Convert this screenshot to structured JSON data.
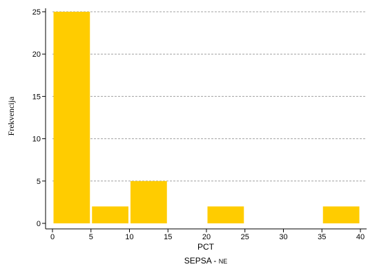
{
  "chart_data": {
    "type": "bar",
    "bins": [
      {
        "x0": 0,
        "x1": 5,
        "value": 25
      },
      {
        "x0": 5,
        "x1": 10,
        "value": 2
      },
      {
        "x0": 10,
        "x1": 15,
        "value": 5
      },
      {
        "x0": 20,
        "x1": 25,
        "value": 2
      },
      {
        "x0": 35,
        "x1": 40,
        "value": 2
      }
    ],
    "x_ticks": [
      0,
      5,
      10,
      15,
      20,
      25,
      30,
      35,
      40
    ],
    "y_ticks": [
      0,
      5,
      10,
      15,
      20,
      25
    ],
    "xlim": [
      0,
      40
    ],
    "ylim": [
      0,
      25
    ],
    "xlabel": "PCT",
    "ylabel": "Frekvencija",
    "subtitle": "SEPSA - ",
    "subtitle_small": "NE",
    "grid": "horizontal-dashed",
    "bar_color": "#ffcc00",
    "grid_color": "#a0a0a0"
  }
}
